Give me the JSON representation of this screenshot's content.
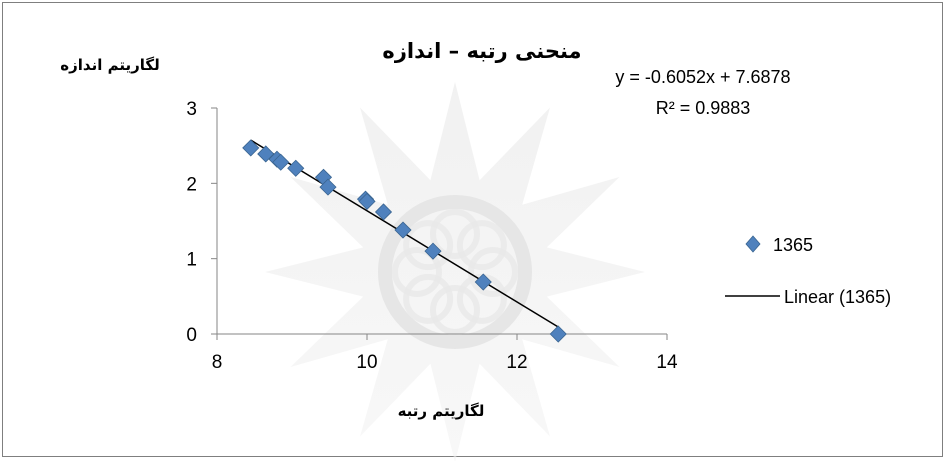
{
  "chart_data": {
    "type": "scatter",
    "title": "منحنی رتبه – اندازه",
    "xlabel": "لگاریتم رتبه",
    "ylabel": "لگاریتم اندازه",
    "xlim": [
      8,
      14
    ],
    "ylim": [
      0,
      3
    ],
    "x_ticks": [
      "8",
      "10",
      "12",
      "14"
    ],
    "y_ticks": [
      "0",
      "1",
      "2",
      "3"
    ],
    "grid": false,
    "legend_position": "right",
    "series": [
      {
        "name": "1365",
        "marker": "diamond",
        "color": "#4f81bd",
        "points": [
          {
            "x": 8.45,
            "y": 2.47
          },
          {
            "x": 8.65,
            "y": 2.39
          },
          {
            "x": 8.8,
            "y": 2.32
          },
          {
            "x": 8.85,
            "y": 2.28
          },
          {
            "x": 9.05,
            "y": 2.2
          },
          {
            "x": 9.42,
            "y": 2.08
          },
          {
            "x": 9.48,
            "y": 1.95
          },
          {
            "x": 9.98,
            "y": 1.79
          },
          {
            "x": 10.0,
            "y": 1.76
          },
          {
            "x": 10.22,
            "y": 1.62
          },
          {
            "x": 10.48,
            "y": 1.38
          },
          {
            "x": 10.88,
            "y": 1.1
          },
          {
            "x": 11.55,
            "y": 0.69
          },
          {
            "x": 12.55,
            "y": 0.0
          }
        ]
      }
    ],
    "trendline": {
      "name": "Linear (1365)",
      "color": "#000000",
      "slope": -0.6052,
      "intercept": 7.6878,
      "x_range": [
        8.45,
        12.55
      ],
      "equation_label": "y = -0.6052x + 7.6878",
      "r2_label": "R² = 0.9883"
    }
  }
}
